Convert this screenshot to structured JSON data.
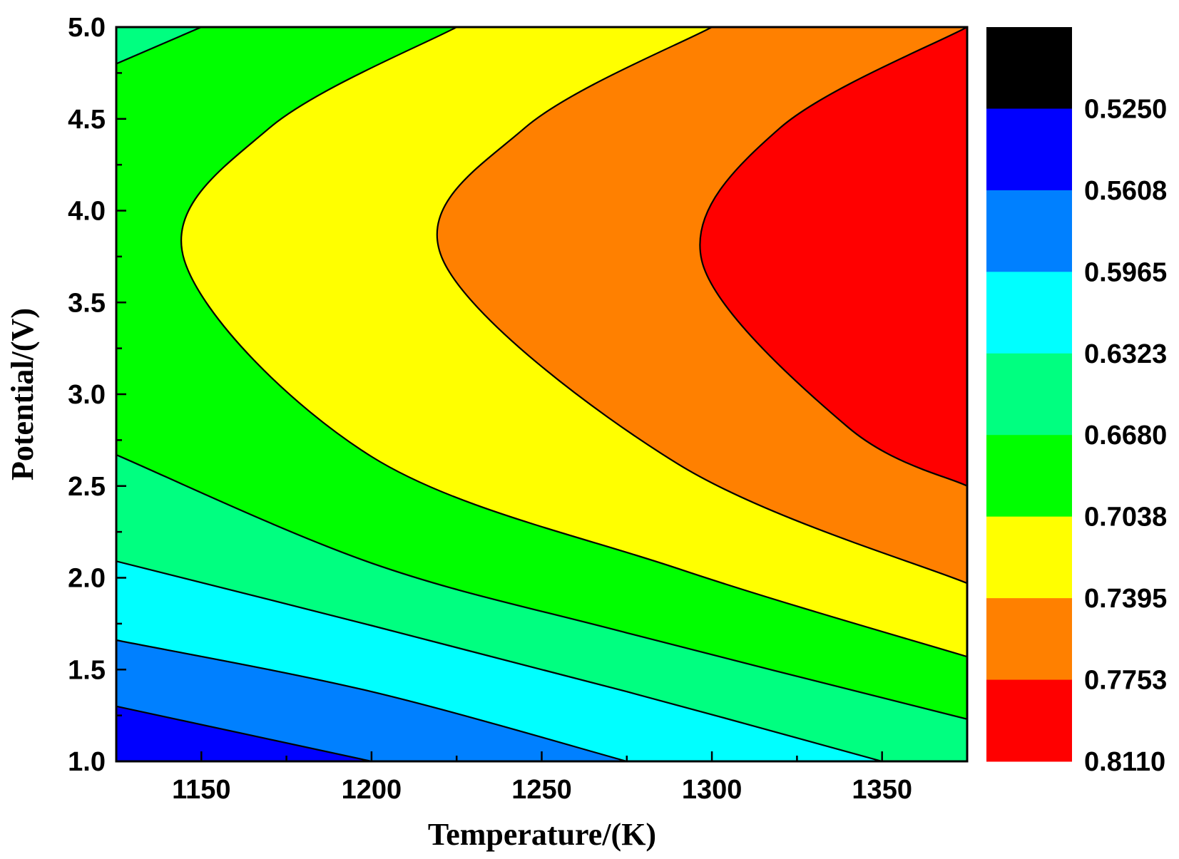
{
  "chart_data": {
    "type": "contour",
    "xlabel": "Temperature/(K)",
    "ylabel": "Potential/(V)",
    "xlim": [
      1125,
      1375
    ],
    "ylim": [
      1.0,
      5.0
    ],
    "x_ticks": [
      "1150",
      "1200",
      "1250",
      "1300",
      "1350"
    ],
    "x_tick_values": [
      1150,
      1200,
      1250,
      1300,
      1350
    ],
    "y_ticks": [
      "1.0",
      "1.5",
      "2.0",
      "2.5",
      "3.0",
      "3.5",
      "4.0",
      "4.5",
      "5.0"
    ],
    "y_tick_values": [
      1.0,
      1.5,
      2.0,
      2.5,
      3.0,
      3.5,
      4.0,
      4.5,
      5.0
    ],
    "colorbar": {
      "labels": [
        "0.5250",
        "0.5608",
        "0.5965",
        "0.6323",
        "0.6680",
        "0.7038",
        "0.7395",
        "0.7753",
        "0.8110"
      ],
      "colors_top_to_bottom": [
        "#000000",
        "#0000ff",
        "#0080ff",
        "#00ffff",
        "#00ff80",
        "#00ff00",
        "#ffff00",
        "#ff8000",
        "#ff0000"
      ]
    },
    "bands": [
      {
        "color": "#0000ff",
        "note": "lowest region, lower-left corner"
      },
      {
        "color": "#0080ff"
      },
      {
        "color": "#00ffff"
      },
      {
        "color": "#00ff80"
      },
      {
        "color": "#00ff00"
      },
      {
        "color": "#ffff00"
      },
      {
        "color": "#ff8000"
      },
      {
        "color": "#ff0000",
        "note": "highest region, right side near 3.7 V"
      }
    ],
    "contours": [
      {
        "level": "0.5608",
        "points": [
          [
            1125,
            1.3
          ],
          [
            1200,
            1.0
          ]
        ]
      },
      {
        "level": "0.5965",
        "points": [
          [
            1125,
            1.66
          ],
          [
            1200,
            1.38
          ],
          [
            1275,
            1.0
          ]
        ]
      },
      {
        "level": "0.6323",
        "points": [
          [
            1125,
            2.09
          ],
          [
            1200,
            1.74
          ],
          [
            1275,
            1.38
          ],
          [
            1350,
            1.0
          ]
        ]
      },
      {
        "level": "0.6680",
        "points": [
          [
            1125,
            2.67
          ],
          [
            1200,
            2.08
          ],
          [
            1275,
            1.7
          ],
          [
            1375,
            1.23
          ]
        ]
      },
      {
        "level": "0.6680",
        "points": [
          [
            1125,
            4.8
          ],
          [
            1150,
            5.0
          ]
        ]
      },
      {
        "level": "0.7038",
        "points": [
          [
            1225,
            5.0
          ],
          [
            1170,
            4.45
          ],
          [
            1145,
            3.73
          ],
          [
            1200,
            2.66
          ],
          [
            1290,
            2.05
          ],
          [
            1375,
            1.57
          ]
        ]
      },
      {
        "level": "0.7395",
        "points": [
          [
            1300,
            5.0
          ],
          [
            1245,
            4.45
          ],
          [
            1221,
            3.73
          ],
          [
            1290,
            2.62
          ],
          [
            1375,
            1.97
          ]
        ]
      },
      {
        "level": "0.7753",
        "points": [
          [
            1375,
            5.0
          ],
          [
            1320,
            4.45
          ],
          [
            1297,
            3.73
          ],
          [
            1340,
            2.82
          ],
          [
            1375,
            2.5
          ]
        ]
      }
    ]
  }
}
